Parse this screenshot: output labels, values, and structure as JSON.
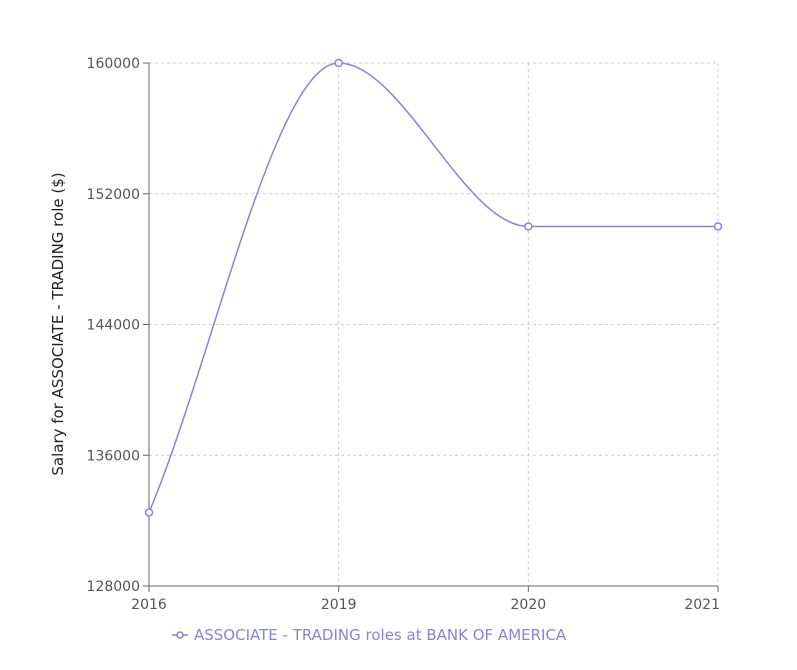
{
  "chart_data": {
    "type": "line",
    "title": "",
    "xlabel": "",
    "ylabel": "Salary for ASSOCIATE - TRADING role ($)",
    "categories": [
      "2016",
      "2019",
      "2020",
      "2021"
    ],
    "series": [
      {
        "name": "ASSOCIATE - TRADING roles at BANK OF AMERICA",
        "values": [
          132500,
          160000,
          150000,
          150000
        ],
        "color": "#8884d8"
      }
    ],
    "ylim": [
      128000,
      160000
    ],
    "yticks": [
      "128000",
      "136000",
      "144000",
      "152000",
      "160000"
    ],
    "grid": true,
    "legend": "bottom-center",
    "curve": "smooth"
  }
}
